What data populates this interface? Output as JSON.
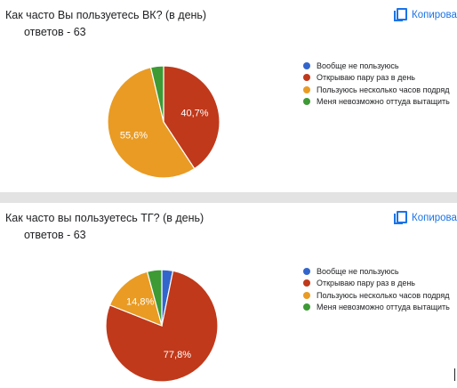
{
  "copy_label": "Копирова",
  "chart_data": [
    {
      "type": "pie",
      "title": "Как часто Вы пользуетесь ВК? (в день)",
      "responses_text": "ответов - 63",
      "categories": [
        "Вообще не пользуюсь",
        "Открываю пару раз в день",
        "Пользуюсь несколько часов подряд",
        "Меня невозможно оттуда вытащить"
      ],
      "values": [
        0,
        40.7,
        55.6,
        3.7
      ],
      "slice_labels": [
        "",
        "40,7%",
        "55,6%",
        ""
      ],
      "colors": [
        "#3366cc",
        "#c0391b",
        "#e99b23",
        "#3d9a35"
      ],
      "legend_position": "right"
    },
    {
      "type": "pie",
      "title": "Как часто вы пользуетесь ТГ? (в день)",
      "responses_text": "ответов - 63",
      "categories": [
        "Вообще не пользуюсь",
        "Открываю пару раз в день",
        "Пользуюсь несколько часов подряд",
        "Меня невозможно оттуда вытащить"
      ],
      "values": [
        3.2,
        77.8,
        14.8,
        4.2
      ],
      "slice_labels": [
        "",
        "77,8%",
        "14,8%",
        ""
      ],
      "colors": [
        "#3366cc",
        "#c0391b",
        "#e99b23",
        "#3d9a35"
      ],
      "legend_position": "right"
    }
  ]
}
